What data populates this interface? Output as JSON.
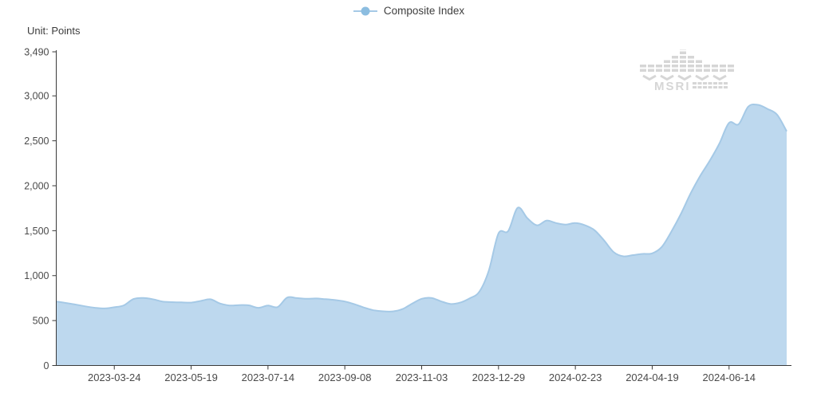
{
  "legend": {
    "label": "Composite Index"
  },
  "unit_label": "Unit: Points",
  "watermark": {
    "text": "MSRI"
  },
  "chart_data": {
    "type": "area",
    "series_name": "Composite Index",
    "unit": "Points",
    "x": [
      "2023-02-10",
      "2023-02-17",
      "2023-02-24",
      "2023-03-03",
      "2023-03-10",
      "2023-03-17",
      "2023-03-24",
      "2023-03-31",
      "2023-04-07",
      "2023-04-14",
      "2023-04-21",
      "2023-04-28",
      "2023-05-05",
      "2023-05-12",
      "2023-05-19",
      "2023-05-26",
      "2023-06-02",
      "2023-06-09",
      "2023-06-16",
      "2023-06-23",
      "2023-06-30",
      "2023-07-07",
      "2023-07-14",
      "2023-07-21",
      "2023-07-28",
      "2023-08-04",
      "2023-08-11",
      "2023-08-18",
      "2023-08-25",
      "2023-09-01",
      "2023-09-08",
      "2023-09-15",
      "2023-09-22",
      "2023-09-29",
      "2023-10-06",
      "2023-10-13",
      "2023-10-20",
      "2023-10-27",
      "2023-11-03",
      "2023-11-10",
      "2023-11-17",
      "2023-11-24",
      "2023-12-01",
      "2023-12-08",
      "2023-12-15",
      "2023-12-22",
      "2023-12-29",
      "2024-01-05",
      "2024-01-12",
      "2024-01-19",
      "2024-01-26",
      "2024-02-02",
      "2024-02-09",
      "2024-02-16",
      "2024-02-23",
      "2024-03-01",
      "2024-03-08",
      "2024-03-15",
      "2024-03-22",
      "2024-03-29",
      "2024-04-05",
      "2024-04-12",
      "2024-04-19",
      "2024-04-26",
      "2024-05-03",
      "2024-05-10",
      "2024-05-17",
      "2024-05-24",
      "2024-05-31",
      "2024-06-07",
      "2024-06-14",
      "2024-06-21",
      "2024-06-28",
      "2024-07-05",
      "2024-07-12",
      "2024-07-19",
      "2024-07-26"
    ],
    "values": [
      712,
      695,
      678,
      658,
      642,
      635,
      648,
      670,
      740,
      752,
      738,
      712,
      705,
      702,
      700,
      718,
      737,
      690,
      668,
      672,
      670,
      642,
      668,
      650,
      756,
      750,
      742,
      746,
      738,
      728,
      712,
      682,
      645,
      615,
      603,
      602,
      628,
      688,
      742,
      752,
      715,
      685,
      700,
      748,
      820,
      1060,
      1470,
      1495,
      1755,
      1640,
      1560,
      1612,
      1585,
      1568,
      1585,
      1560,
      1505,
      1390,
      1260,
      1215,
      1228,
      1242,
      1248,
      1320,
      1490,
      1690,
      1915,
      2110,
      2280,
      2470,
      2700,
      2685,
      2880,
      2900,
      2855,
      2790,
      2605
    ],
    "x_tick_labels": [
      "2023-03-24",
      "2023-05-19",
      "2023-07-14",
      "2023-09-08",
      "2023-11-03",
      "2023-12-29",
      "2024-02-23",
      "2024-04-19",
      "2024-06-14"
    ],
    "y_ticks": [
      0,
      500,
      1000,
      1500,
      2000,
      2500,
      3000,
      3490
    ],
    "ylim": [
      0,
      3490
    ],
    "title": "",
    "xlabel": "",
    "ylabel": "Unit: Points",
    "grid": false,
    "legend_position": "top-center",
    "colors": {
      "area_fill": "#bdd8ee",
      "line": "#a5c9e6",
      "marker": "#8cbde0",
      "axis": "#3a3a3a",
      "tick_text": "#4a4a4a",
      "watermark": "#d6d6d6"
    }
  }
}
